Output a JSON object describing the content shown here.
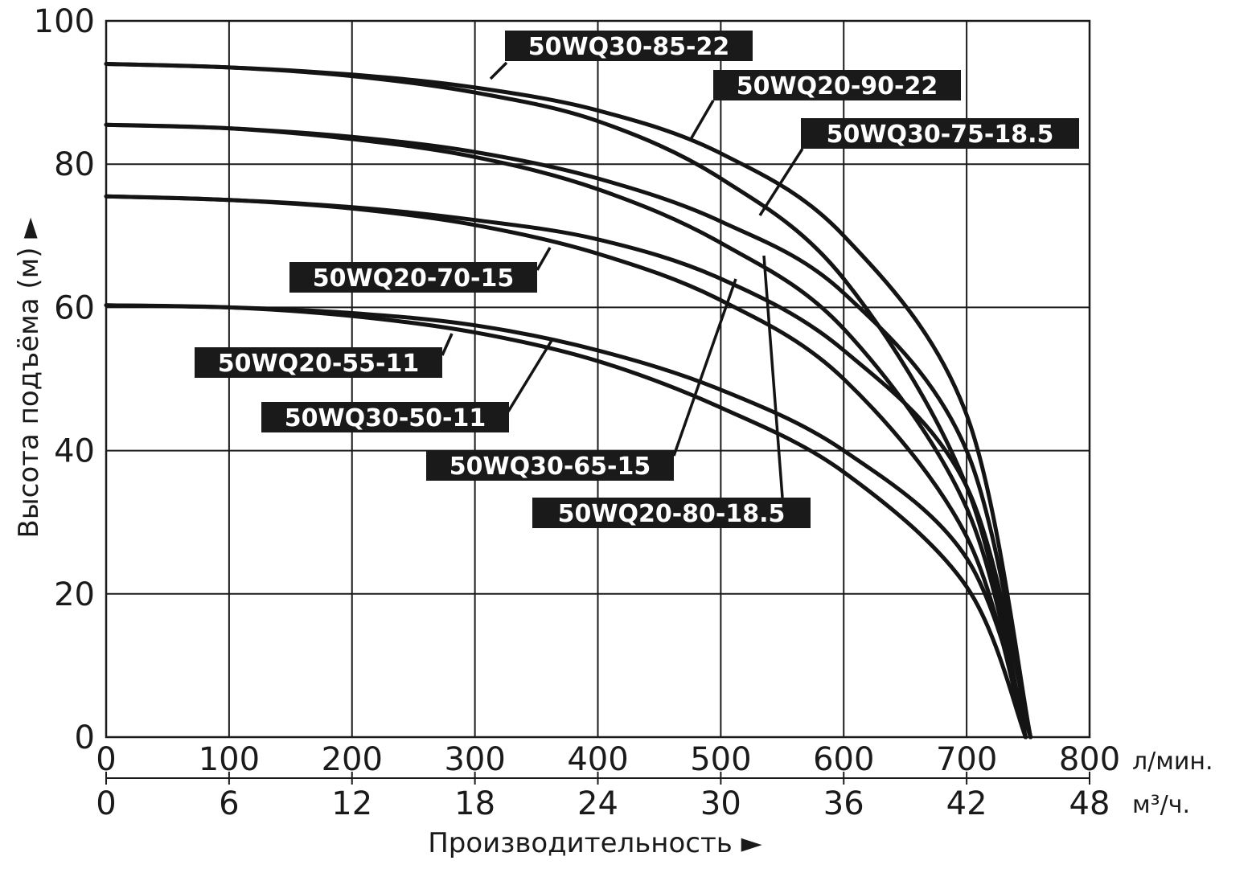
{
  "chart_data": {
    "type": "line",
    "title": "",
    "xlabel": "Производительность ►",
    "ylabel": "Высота подъёма (м) ►",
    "x_unit_primary": "л/мин.",
    "x_unit_secondary": "м³/ч.",
    "xlim": [
      0,
      800
    ],
    "ylim": [
      0,
      100
    ],
    "x_ticks_primary": [
      "0",
      "100",
      "200",
      "300",
      "400",
      "500",
      "600",
      "700",
      "800"
    ],
    "x_ticks_secondary": [
      "0",
      "6",
      "12",
      "18",
      "24",
      "30",
      "36",
      "42",
      "48"
    ],
    "y_ticks": [
      "0",
      "20",
      "40",
      "60",
      "80",
      "100"
    ],
    "grid": true,
    "legend": "none",
    "series": [
      {
        "name": "50WQ30-85-22",
        "shutoff_head": 94,
        "max_flow": 752,
        "points": [
          [
            0,
            94
          ],
          [
            100,
            93.5
          ],
          [
            200,
            92.5
          ],
          [
            300,
            90.7
          ],
          [
            400,
            87.5
          ],
          [
            500,
            81.5
          ],
          [
            600,
            70
          ],
          [
            700,
            45
          ],
          [
            752,
            0
          ]
        ]
      },
      {
        "name": "50WQ20-90-22",
        "shutoff_head": 94,
        "max_flow": 748,
        "points": [
          [
            0,
            94
          ],
          [
            100,
            93.5
          ],
          [
            200,
            92.3
          ],
          [
            300,
            90
          ],
          [
            400,
            86
          ],
          [
            500,
            78
          ],
          [
            600,
            64
          ],
          [
            700,
            35
          ],
          [
            748,
            0
          ]
        ]
      },
      {
        "name": "50WQ30-75-18.5",
        "shutoff_head": 85.5,
        "max_flow": 752,
        "points": [
          [
            0,
            85.5
          ],
          [
            100,
            85
          ],
          [
            200,
            83.8
          ],
          [
            300,
            81.7
          ],
          [
            400,
            78
          ],
          [
            500,
            72
          ],
          [
            600,
            62
          ],
          [
            700,
            40
          ],
          [
            752,
            0
          ]
        ]
      },
      {
        "name": "50WQ20-80-18.5",
        "shutoff_head": 85.5,
        "max_flow": 748,
        "points": [
          [
            0,
            85.5
          ],
          [
            100,
            85
          ],
          [
            200,
            83.5
          ],
          [
            300,
            81
          ],
          [
            400,
            76.5
          ],
          [
            500,
            69
          ],
          [
            600,
            57
          ],
          [
            700,
            32
          ],
          [
            748,
            0
          ]
        ]
      },
      {
        "name": "50WQ30-65-15",
        "shutoff_head": 75.5,
        "max_flow": 752,
        "points": [
          [
            0,
            75.5
          ],
          [
            100,
            75
          ],
          [
            200,
            74
          ],
          [
            300,
            72.2
          ],
          [
            400,
            69.5
          ],
          [
            500,
            64
          ],
          [
            600,
            54
          ],
          [
            700,
            35
          ],
          [
            752,
            0
          ]
        ]
      },
      {
        "name": "50WQ20-70-15",
        "shutoff_head": 75.5,
        "max_flow": 748,
        "points": [
          [
            0,
            75.5
          ],
          [
            100,
            75
          ],
          [
            200,
            73.8
          ],
          [
            300,
            71.5
          ],
          [
            400,
            67.5
          ],
          [
            500,
            61
          ],
          [
            600,
            50
          ],
          [
            700,
            28
          ],
          [
            748,
            0
          ]
        ]
      },
      {
        "name": "50WQ30-50-11",
        "shutoff_head": 60.3,
        "max_flow": 752,
        "points": [
          [
            0,
            60.3
          ],
          [
            100,
            60
          ],
          [
            200,
            59.2
          ],
          [
            300,
            57.5
          ],
          [
            400,
            54
          ],
          [
            500,
            48.5
          ],
          [
            600,
            40
          ],
          [
            700,
            25
          ],
          [
            752,
            0
          ]
        ]
      },
      {
        "name": "50WQ20-55-11",
        "shutoff_head": 60.3,
        "max_flow": 748,
        "points": [
          [
            0,
            60.3
          ],
          [
            100,
            60
          ],
          [
            200,
            58.8
          ],
          [
            300,
            56.5
          ],
          [
            400,
            52.5
          ],
          [
            500,
            46
          ],
          [
            600,
            37
          ],
          [
            700,
            21
          ],
          [
            748,
            0
          ]
        ]
      }
    ],
    "annotations": [
      {
        "text": "50WQ30-85-22",
        "series": "50WQ30-85-22"
      },
      {
        "text": "50WQ20-90-22",
        "series": "50WQ20-90-22"
      },
      {
        "text": "50WQ30-75-18.5",
        "series": "50WQ30-75-18.5"
      },
      {
        "text": "50WQ20-70-15",
        "series": "50WQ20-70-15"
      },
      {
        "text": "50WQ20-55-11",
        "series": "50WQ20-55-11"
      },
      {
        "text": "50WQ30-50-11",
        "series": "50WQ30-50-11"
      },
      {
        "text": "50WQ30-65-15",
        "series": "50WQ30-65-15"
      },
      {
        "text": "50WQ20-80-18.5",
        "series": "50WQ20-80-18.5"
      }
    ],
    "colors": {
      "line": "#141414",
      "label_background": "#1a1a1a",
      "label_text": "#ffffff"
    }
  }
}
